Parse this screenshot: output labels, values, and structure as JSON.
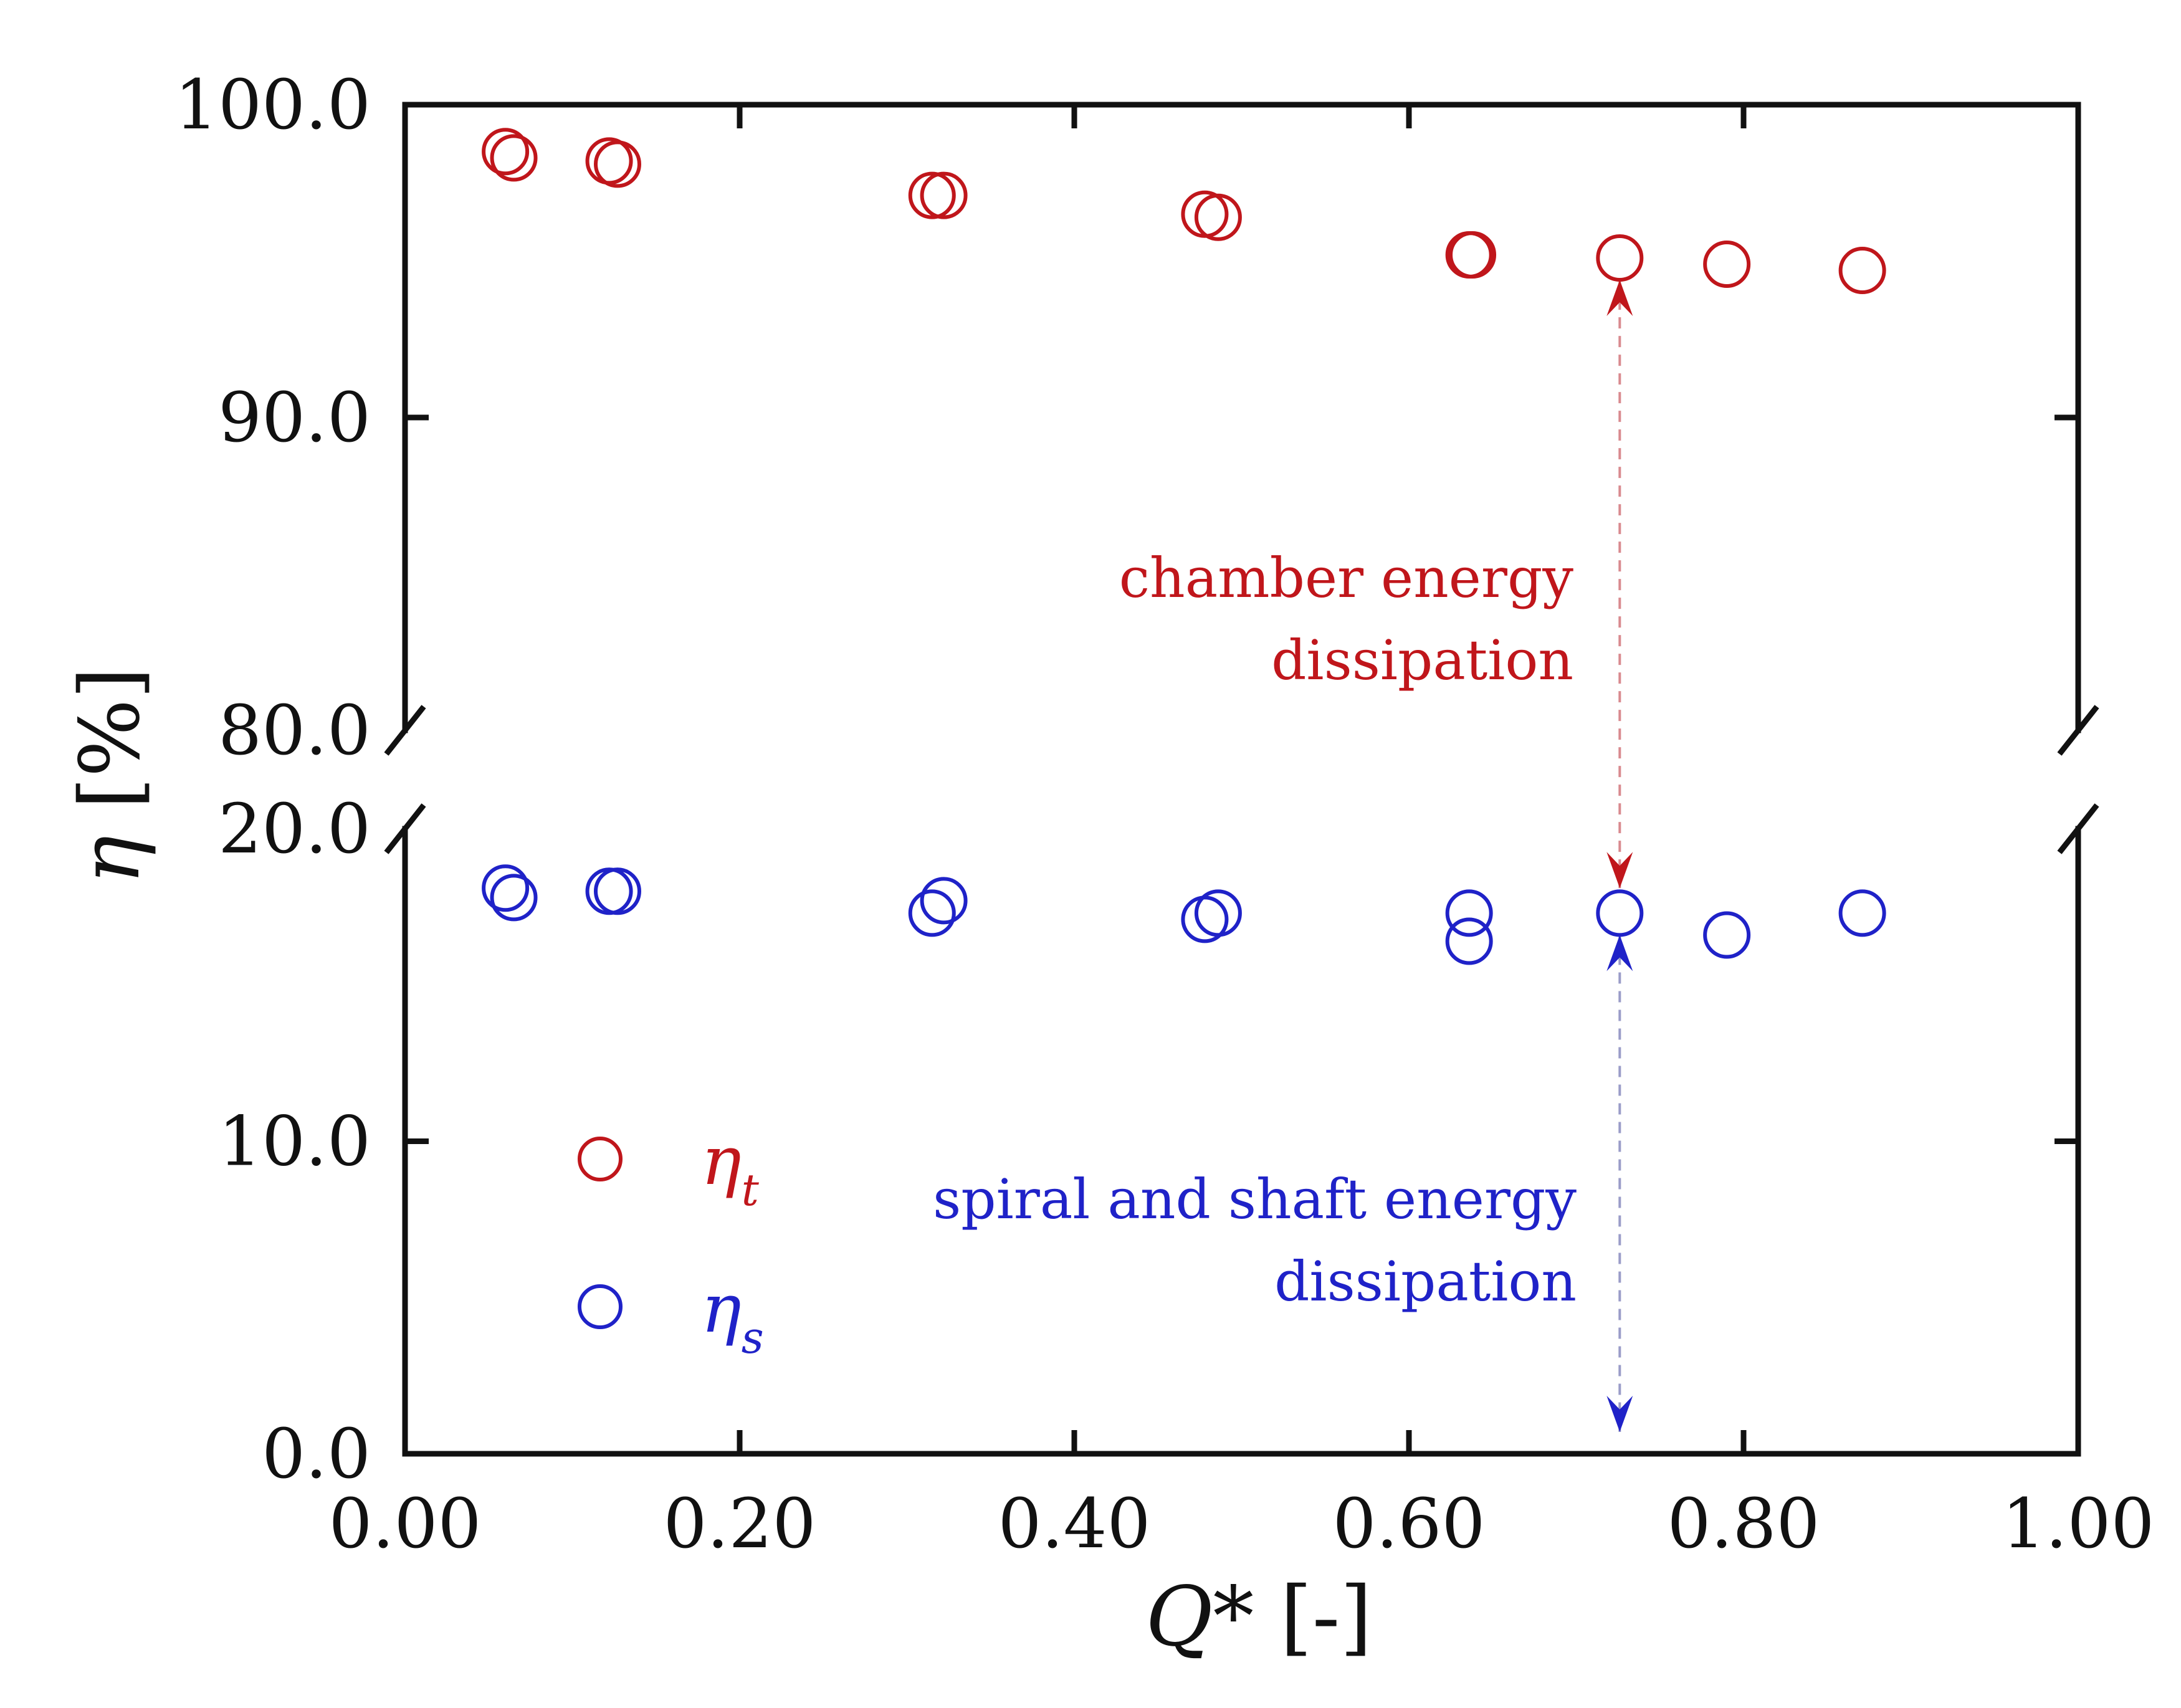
{
  "chart_data": {
    "type": "scatter",
    "title": "",
    "xlabel": "Q* [-]",
    "xlabel_parts": {
      "main": "Q",
      "rest": "* [-]"
    },
    "ylabel": "η [%]",
    "ylabel_parts": {
      "symbol": "η",
      "unit": " [%]"
    },
    "xlim": [
      0.0,
      1.0
    ],
    "x_ticks": [
      {
        "value": 0.0,
        "label": "0.00"
      },
      {
        "value": 0.2,
        "label": "0.20"
      },
      {
        "value": 0.4,
        "label": "0.40"
      },
      {
        "value": 0.6,
        "label": "0.60"
      },
      {
        "value": 0.8,
        "label": "0.80"
      },
      {
        "value": 1.0,
        "label": "1.00"
      }
    ],
    "broken_y_axis": true,
    "y_segments": {
      "upper": {
        "ylim": [
          80.0,
          100.0
        ],
        "ticks": [
          {
            "value": 100.0,
            "label": "100.0"
          },
          {
            "value": 90.0,
            "label": "90.0"
          },
          {
            "value": 80.0,
            "label": "80.0"
          }
        ]
      },
      "lower": {
        "ylim": [
          0.0,
          20.0
        ],
        "ticks": [
          {
            "value": 20.0,
            "label": "20.0"
          },
          {
            "value": 10.0,
            "label": "10.0"
          },
          {
            "value": 0.0,
            "label": "0.0"
          }
        ]
      }
    },
    "series": [
      {
        "name": "η_t",
        "symbol": "η",
        "subscript": "t",
        "color": "#c0161b",
        "marker": "open-circle",
        "segment": "upper",
        "points": [
          {
            "x": 0.06,
            "y": 98.5
          },
          {
            "x": 0.065,
            "y": 98.3
          },
          {
            "x": 0.122,
            "y": 98.2
          },
          {
            "x": 0.127,
            "y": 98.1
          },
          {
            "x": 0.315,
            "y": 97.1
          },
          {
            "x": 0.322,
            "y": 97.1
          },
          {
            "x": 0.478,
            "y": 96.5
          },
          {
            "x": 0.486,
            "y": 96.4
          },
          {
            "x": 0.636,
            "y": 95.2
          },
          {
            "x": 0.638,
            "y": 95.2
          },
          {
            "x": 0.726,
            "y": 95.1
          },
          {
            "x": 0.79,
            "y": 94.9
          },
          {
            "x": 0.871,
            "y": 94.7
          }
        ]
      },
      {
        "name": "η_s",
        "symbol": "η",
        "subscript": "s",
        "color": "#1f22c8",
        "marker": "open-circle",
        "segment": "lower",
        "points": [
          {
            "x": 0.06,
            "y": 18.1
          },
          {
            "x": 0.065,
            "y": 17.8
          },
          {
            "x": 0.122,
            "y": 18.0
          },
          {
            "x": 0.127,
            "y": 18.0
          },
          {
            "x": 0.315,
            "y": 17.3
          },
          {
            "x": 0.322,
            "y": 17.7
          },
          {
            "x": 0.478,
            "y": 17.1
          },
          {
            "x": 0.486,
            "y": 17.3
          },
          {
            "x": 0.636,
            "y": 17.3
          },
          {
            "x": 0.636,
            "y": 16.4
          },
          {
            "x": 0.726,
            "y": 17.3
          },
          {
            "x": 0.79,
            "y": 16.6
          },
          {
            "x": 0.871,
            "y": 17.3
          }
        ]
      }
    ],
    "annotations": [
      {
        "lines": [
          "chamber energy",
          "dissipation"
        ],
        "color": "#c0161b",
        "arrow": {
          "x": 0.726,
          "from_segment": "upper",
          "from_y": 94.4,
          "to_segment": "lower",
          "to_y": 18.1
        }
      },
      {
        "lines": [
          "spiral and shaft energy",
          "dissipation"
        ],
        "color": "#1f22c8",
        "arrow": {
          "x": 0.726,
          "from_segment": "lower",
          "from_y": 16.6,
          "to_segment": "lower",
          "to_y": 0.7
        }
      }
    ],
    "legend": {
      "position": "lower-left"
    }
  }
}
